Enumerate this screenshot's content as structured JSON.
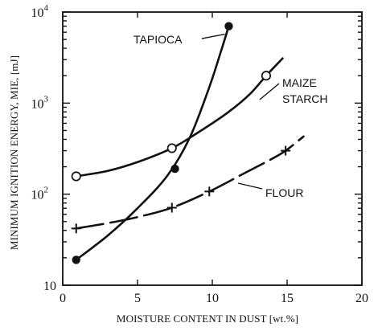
{
  "chart_data": {
    "type": "scatter",
    "title": "",
    "xlabel": "MOISTURE CONTENT IN DUST [wt.%]",
    "ylabel": "MINIMUM IGNITION ENERGY, MIE, [mJ]",
    "xlim": [
      0,
      20
    ],
    "ylim": [
      10,
      10000
    ],
    "yscale": "log",
    "grid": false,
    "legend": "none",
    "x_ticks": [
      0,
      5,
      10,
      15,
      20
    ],
    "x_tick_labels": [
      "0",
      "5",
      "10",
      "15",
      "20"
    ],
    "y_ticks": [
      10,
      100,
      1000,
      10000
    ],
    "y_tick_labels": [
      {
        "base": "10",
        "exp": ""
      },
      {
        "base": "10",
        "exp": "2"
      },
      {
        "base": "10",
        "exp": "3"
      },
      {
        "base": "10",
        "exp": "4"
      }
    ],
    "series": [
      {
        "name": "TAPIOCA",
        "marker": "filled-circle",
        "line_style": "solid",
        "points": [
          {
            "x": 0.9,
            "y": 19
          },
          {
            "x": 7.5,
            "y": 190
          },
          {
            "x": 11.1,
            "y": 7000
          }
        ],
        "curve": [
          {
            "x": 0.9,
            "y": 19
          },
          {
            "x": 3.0,
            "y": 35
          },
          {
            "x": 5.0,
            "y": 70
          },
          {
            "x": 7.0,
            "y": 160
          },
          {
            "x": 8.5,
            "y": 420
          },
          {
            "x": 9.8,
            "y": 1500
          },
          {
            "x": 10.6,
            "y": 3800
          },
          {
            "x": 11.1,
            "y": 7000
          }
        ]
      },
      {
        "name": "MAIZE STARCH",
        "label_lines": [
          "MAIZE",
          "STARCH"
        ],
        "marker": "open-circle",
        "line_style": "solid",
        "points": [
          {
            "x": 0.9,
            "y": 157
          },
          {
            "x": 7.3,
            "y": 320
          },
          {
            "x": 13.6,
            "y": 2000
          }
        ],
        "curve": [
          {
            "x": 0.9,
            "y": 157
          },
          {
            "x": 3.0,
            "y": 180
          },
          {
            "x": 5.0,
            "y": 225
          },
          {
            "x": 7.3,
            "y": 320
          },
          {
            "x": 9.0,
            "y": 470
          },
          {
            "x": 11.0,
            "y": 780
          },
          {
            "x": 12.5,
            "y": 1250
          },
          {
            "x": 13.6,
            "y": 2000
          },
          {
            "x": 14.7,
            "y": 3100
          }
        ]
      },
      {
        "name": "FLOUR",
        "marker": "plus",
        "line_style": "dashed",
        "points": [
          {
            "x": 0.9,
            "y": 42
          },
          {
            "x": 7.3,
            "y": 71
          },
          {
            "x": 9.8,
            "y": 107
          },
          {
            "x": 14.9,
            "y": 300
          }
        ],
        "curve": [
          {
            "x": 0.9,
            "y": 42
          },
          {
            "x": 3.0,
            "y": 48
          },
          {
            "x": 5.0,
            "y": 56
          },
          {
            "x": 7.3,
            "y": 71
          },
          {
            "x": 9.8,
            "y": 107
          },
          {
            "x": 12.0,
            "y": 165
          },
          {
            "x": 14.0,
            "y": 245
          },
          {
            "x": 14.9,
            "y": 300
          },
          {
            "x": 16.1,
            "y": 430
          }
        ]
      }
    ]
  }
}
